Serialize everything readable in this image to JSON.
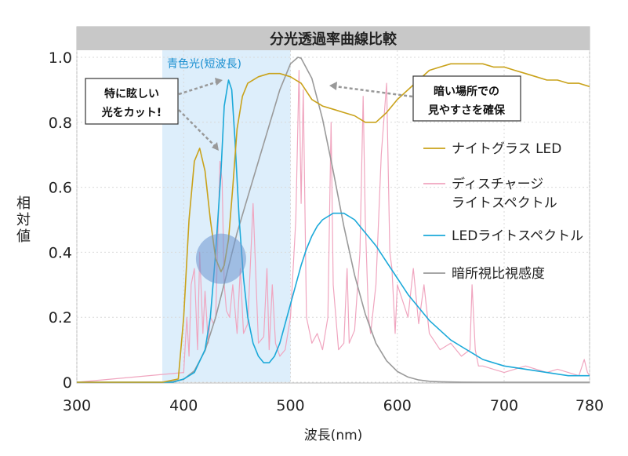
{
  "chart_data": {
    "type": "line",
    "title": "分光透過率曲線比較",
    "xlabel": "波長(nm)",
    "ylabel": "相対値",
    "xlim": [
      300,
      780
    ],
    "ylim": [
      0,
      1.0
    ],
    "x_ticks": [
      "300",
      "400",
      "500",
      "600",
      "700",
      "780"
    ],
    "y_ticks": [
      "0",
      "0.2",
      "0.4",
      "0.6",
      "0.8",
      "1.0"
    ],
    "grid": true,
    "legend_position": "right",
    "series": [
      {
        "name": "ナイトグラス LED",
        "color": "#c9a21a",
        "x": [
          300,
          380,
          395,
          400,
          405,
          410,
          415,
          420,
          425,
          430,
          435,
          438,
          442,
          446,
          450,
          455,
          460,
          470,
          480,
          490,
          500,
          505,
          510,
          520,
          530,
          540,
          550,
          560,
          570,
          580,
          590,
          600,
          610,
          620,
          630,
          640,
          650,
          660,
          670,
          680,
          690,
          700,
          710,
          720,
          730,
          740,
          750,
          760,
          770,
          780
        ],
        "y": [
          0,
          0,
          0.01,
          0.2,
          0.5,
          0.68,
          0.72,
          0.65,
          0.5,
          0.38,
          0.34,
          0.36,
          0.44,
          0.6,
          0.78,
          0.88,
          0.92,
          0.94,
          0.95,
          0.95,
          0.94,
          0.93,
          0.92,
          0.87,
          0.85,
          0.84,
          0.83,
          0.82,
          0.8,
          0.8,
          0.83,
          0.87,
          0.9,
          0.93,
          0.96,
          0.97,
          0.98,
          0.98,
          0.98,
          0.98,
          0.97,
          0.97,
          0.96,
          0.95,
          0.94,
          0.93,
          0.93,
          0.92,
          0.92,
          0.91
        ]
      },
      {
        "name": "ディスチャージ ライトスペクトル",
        "color": "#f0a5bf",
        "x": [
          300,
          400,
          403,
          405,
          407,
          410,
          413,
          415,
          418,
          420,
          423,
          425,
          428,
          430,
          432,
          434,
          436,
          438,
          440,
          443,
          446,
          450,
          453,
          456,
          460,
          465,
          470,
          475,
          478,
          480,
          483,
          486,
          490,
          495,
          500,
          505,
          508,
          510,
          512,
          515,
          520,
          525,
          530,
          535,
          538,
          540,
          545,
          550,
          553,
          555,
          560,
          565,
          568,
          570,
          573,
          575,
          580,
          585,
          590,
          593,
          595,
          598,
          600,
          610,
          615,
          620,
          625,
          630,
          640,
          650,
          660,
          668,
          670,
          673,
          676,
          680,
          700,
          720,
          740,
          750,
          760,
          770,
          775,
          778,
          780
        ],
        "y": [
          0,
          0.03,
          0.2,
          0.08,
          0.3,
          0.35,
          0.1,
          0.4,
          0.15,
          0.28,
          0.12,
          0.2,
          0.18,
          0.2,
          0.45,
          0.68,
          0.62,
          0.3,
          0.22,
          0.2,
          0.3,
          0.15,
          0.35,
          0.15,
          0.18,
          0.55,
          0.12,
          0.14,
          0.35,
          0.1,
          0.3,
          0.12,
          0.08,
          0.1,
          0.2,
          0.5,
          0.96,
          0.55,
          0.9,
          0.2,
          0.12,
          0.15,
          0.1,
          0.2,
          0.8,
          0.3,
          0.1,
          0.12,
          0.35,
          0.12,
          0.16,
          0.4,
          0.88,
          0.5,
          0.2,
          0.15,
          0.3,
          0.7,
          0.92,
          0.4,
          0.35,
          0.15,
          0.3,
          0.2,
          0.35,
          0.18,
          0.3,
          0.15,
          0.1,
          0.12,
          0.08,
          0.1,
          0.3,
          0.1,
          0.05,
          0.05,
          0.03,
          0.05,
          0.03,
          0.04,
          0.03,
          0.02,
          0.07,
          0.03,
          0.02
        ]
      },
      {
        "name": "LEDライトスペクトル",
        "color": "#1ba9d9",
        "x": [
          300,
          390,
          400,
          410,
          420,
          425,
          430,
          435,
          438,
          442,
          445,
          448,
          452,
          456,
          460,
          465,
          470,
          475,
          480,
          485,
          490,
          495,
          500,
          505,
          510,
          515,
          520,
          525,
          530,
          540,
          550,
          560,
          570,
          580,
          590,
          600,
          610,
          620,
          630,
          640,
          650,
          660,
          670,
          680,
          690,
          700,
          720,
          740,
          760,
          780
        ],
        "y": [
          0,
          0,
          0.01,
          0.03,
          0.1,
          0.2,
          0.4,
          0.65,
          0.85,
          0.93,
          0.9,
          0.75,
          0.5,
          0.32,
          0.2,
          0.12,
          0.08,
          0.06,
          0.06,
          0.08,
          0.12,
          0.18,
          0.24,
          0.3,
          0.36,
          0.41,
          0.45,
          0.48,
          0.5,
          0.52,
          0.52,
          0.5,
          0.46,
          0.42,
          0.37,
          0.32,
          0.27,
          0.23,
          0.19,
          0.16,
          0.13,
          0.11,
          0.09,
          0.07,
          0.06,
          0.05,
          0.04,
          0.03,
          0.02,
          0.02
        ]
      },
      {
        "name": "暗所視比視感度",
        "color": "#9a9a9a",
        "x": [
          300,
          380,
          390,
          400,
          410,
          420,
          430,
          440,
          450,
          460,
          470,
          480,
          490,
          500,
          507,
          510,
          520,
          530,
          540,
          550,
          560,
          570,
          580,
          590,
          600,
          610,
          620,
          630,
          640,
          650,
          660,
          680,
          700,
          740,
          780
        ],
        "y": [
          0,
          0,
          0.002,
          0.009,
          0.035,
          0.097,
          0.2,
          0.33,
          0.46,
          0.57,
          0.68,
          0.79,
          0.9,
          0.98,
          1.0,
          0.997,
          0.935,
          0.81,
          0.65,
          0.48,
          0.33,
          0.21,
          0.12,
          0.066,
          0.033,
          0.016,
          0.007,
          0.003,
          0.0015,
          0.0007,
          0.0003,
          0,
          0,
          0,
          0
        ]
      }
    ],
    "annotations": {
      "blue_light_label": "青色光(短波長)",
      "blue_light_range": [
        380,
        500
      ],
      "callout_left_line1": "特に眩しい",
      "callout_left_line2": "光をカット!",
      "callout_right_line1": "暗い場所での",
      "callout_right_line2": "見やすさを確保"
    },
    "legend_entries": [
      {
        "line1": "ナイトグラス LED",
        "line2": ""
      },
      {
        "line1": "ディスチャージ",
        "line2": "ライトスペクトル"
      },
      {
        "line1": "LEDライトスペクトル",
        "line2": ""
      },
      {
        "line1": "暗所視比視感度",
        "line2": ""
      }
    ]
  }
}
